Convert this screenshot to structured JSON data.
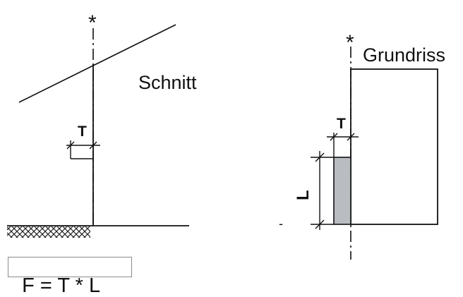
{
  "section_view": {
    "label": "Schnitt",
    "symbol": "*",
    "dimension": "T"
  },
  "plan_view": {
    "label": "Grundriss",
    "symbol": "*",
    "dimension_depth": "T",
    "dimension_length": "L",
    "marker": "-"
  },
  "formula": "F = T * L",
  "colors": {
    "line": "#111111",
    "area_fill": "#b9bcc0",
    "formula_border": "#8a8a8a"
  }
}
